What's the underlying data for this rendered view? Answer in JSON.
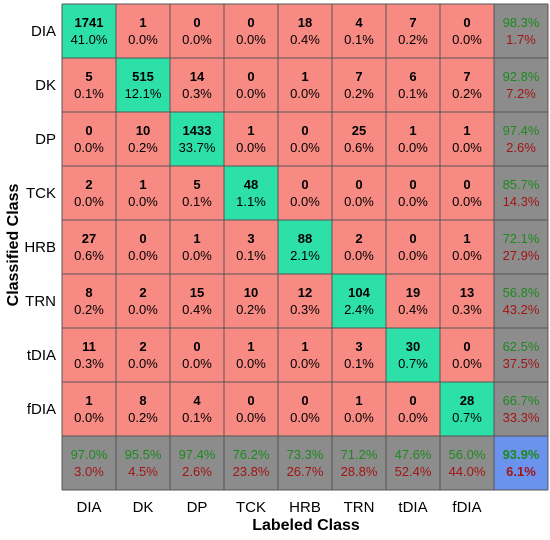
{
  "chart_data": {
    "type": "heatmap",
    "subtype": "confusion-matrix",
    "title": "",
    "xlabel": "Labeled Class",
    "ylabel": "Classified Class",
    "classes": [
      "DIA",
      "DK",
      "DP",
      "TCK",
      "HRB",
      "TRN",
      "tDIA",
      "fDIA"
    ],
    "counts": [
      [
        1741,
        1,
        0,
        0,
        18,
        4,
        7,
        0
      ],
      [
        5,
        515,
        14,
        0,
        1,
        7,
        6,
        7
      ],
      [
        0,
        10,
        1433,
        1,
        0,
        25,
        1,
        1
      ],
      [
        2,
        1,
        5,
        48,
        0,
        0,
        0,
        0
      ],
      [
        27,
        0,
        1,
        3,
        88,
        2,
        0,
        1
      ],
      [
        8,
        2,
        15,
        10,
        12,
        104,
        19,
        13
      ],
      [
        11,
        2,
        0,
        1,
        1,
        3,
        30,
        0
      ],
      [
        1,
        8,
        4,
        0,
        0,
        1,
        0,
        28
      ]
    ],
    "percents": [
      [
        "41.0%",
        "0.0%",
        "0.0%",
        "0.0%",
        "0.4%",
        "0.1%",
        "0.2%",
        "0.0%"
      ],
      [
        "0.1%",
        "12.1%",
        "0.3%",
        "0.0%",
        "0.0%",
        "0.2%",
        "0.1%",
        "0.2%"
      ],
      [
        "0.0%",
        "0.2%",
        "33.7%",
        "0.0%",
        "0.0%",
        "0.6%",
        "0.0%",
        "0.0%"
      ],
      [
        "0.0%",
        "0.0%",
        "0.1%",
        "1.1%",
        "0.0%",
        "0.0%",
        "0.0%",
        "0.0%"
      ],
      [
        "0.6%",
        "0.0%",
        "0.0%",
        "0.1%",
        "2.1%",
        "0.0%",
        "0.0%",
        "0.0%"
      ],
      [
        "0.2%",
        "0.0%",
        "0.4%",
        "0.2%",
        "0.3%",
        "2.4%",
        "0.4%",
        "0.3%"
      ],
      [
        "0.3%",
        "0.0%",
        "0.0%",
        "0.0%",
        "0.0%",
        "0.1%",
        "0.7%",
        "0.0%"
      ],
      [
        "0.0%",
        "0.2%",
        "0.1%",
        "0.0%",
        "0.0%",
        "0.0%",
        "0.0%",
        "0.7%"
      ]
    ],
    "row_summary": [
      [
        "98.3%",
        "1.7%"
      ],
      [
        "92.8%",
        "7.2%"
      ],
      [
        "97.4%",
        "2.6%"
      ],
      [
        "85.7%",
        "14.3%"
      ],
      [
        "72.1%",
        "27.9%"
      ],
      [
        "56.8%",
        "43.2%"
      ],
      [
        "62.5%",
        "37.5%"
      ],
      [
        "66.7%",
        "33.3%"
      ]
    ],
    "column_summary": [
      [
        "97.0%",
        "3.0%"
      ],
      [
        "95.5%",
        "4.5%"
      ],
      [
        "97.4%",
        "2.6%"
      ],
      [
        "76.2%",
        "23.8%"
      ],
      [
        "73.3%",
        "26.7%"
      ],
      [
        "71.2%",
        "28.8%"
      ],
      [
        "47.6%",
        "52.4%"
      ],
      [
        "56.0%",
        "44.0%"
      ]
    ],
    "overall": [
      "93.9%",
      "6.1%"
    ],
    "grid": true
  },
  "colors": {
    "correct": "#2de0a7",
    "incorrect": "#f88a84",
    "summary": "#8c8c8c",
    "overall": "#6b93ee",
    "grid_line": "#555555",
    "accuracy_text": "#1c8a1c",
    "error_text": "#a31515"
  }
}
